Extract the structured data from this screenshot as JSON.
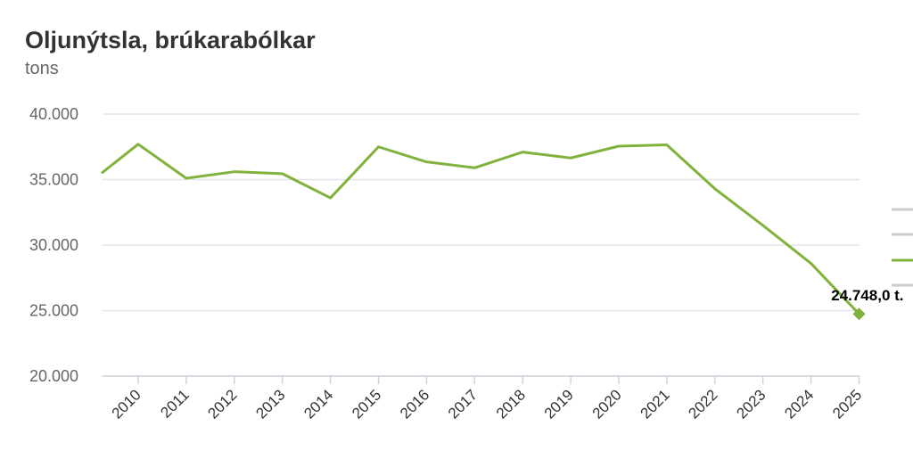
{
  "chart_data": {
    "type": "line",
    "title": "Oljunýtsla, brúkarabólkar",
    "subtitle": "tons",
    "xlabel": "",
    "ylabel": "",
    "ylim": [
      20000,
      40000
    ],
    "y_ticks": [
      "20.000",
      "25.000",
      "30.000",
      "35.000",
      "40.000"
    ],
    "y_tick_values": [
      20000,
      25000,
      30000,
      35000,
      40000
    ],
    "categories": [
      "2010",
      "2011",
      "2012",
      "2013",
      "2014",
      "2015",
      "2016",
      "2017",
      "2018",
      "2019",
      "2020",
      "2021",
      "2022",
      "2023",
      "2024",
      "2025"
    ],
    "series": [
      {
        "values": [
          37700,
          35100,
          35600,
          35450,
          33600,
          37500,
          36350,
          35900,
          37100,
          36650,
          37550,
          37650,
          34300,
          31500,
          28600,
          24748
        ],
        "color": "#82b23e"
      }
    ],
    "series_start_value": 35550,
    "last_point_label": "24.748,0 t.",
    "grid": true,
    "gridline_color": "#e3e6ec",
    "legend_position": "right (partially clipped, no visible labels)",
    "legend_colors": [
      "#cccccc",
      "#cccccc",
      "#82b23e",
      "#cccccc"
    ]
  }
}
